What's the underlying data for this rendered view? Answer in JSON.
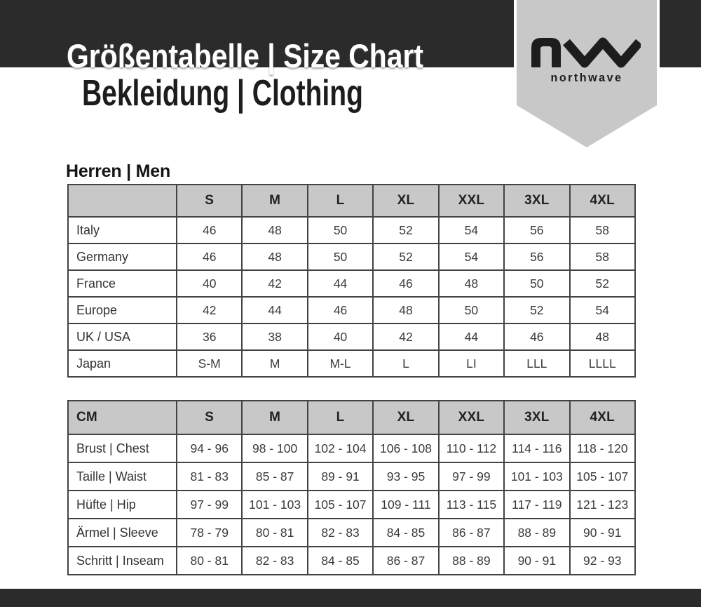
{
  "header": {
    "title": "Größentabelle | Size Chart",
    "subtitle": "Bekleidung | Clothing",
    "brand_name": "northwave"
  },
  "section_men": {
    "heading": "Herren | Men"
  },
  "size_table": {
    "columns": [
      "",
      "S",
      "M",
      "L",
      "XL",
      "XXL",
      "3XL",
      "4XL"
    ],
    "rows": [
      {
        "label": "Italy",
        "values": [
          "46",
          "48",
          "50",
          "52",
          "54",
          "56",
          "58"
        ]
      },
      {
        "label": "Germany",
        "values": [
          "46",
          "48",
          "50",
          "52",
          "54",
          "56",
          "58"
        ]
      },
      {
        "label": "France",
        "values": [
          "40",
          "42",
          "44",
          "46",
          "48",
          "50",
          "52"
        ]
      },
      {
        "label": "Europe",
        "values": [
          "42",
          "44",
          "46",
          "48",
          "50",
          "52",
          "54"
        ]
      },
      {
        "label": "UK / USA",
        "values": [
          "36",
          "38",
          "40",
          "42",
          "44",
          "46",
          "48"
        ]
      },
      {
        "label": "Japan",
        "values": [
          "S-M",
          "M",
          "M-L",
          "L",
          "LI",
          "LLL",
          "LLLL"
        ]
      }
    ]
  },
  "measurement_table": {
    "columns": [
      "CM",
      "S",
      "M",
      "L",
      "XL",
      "XXL",
      "3XL",
      "4XL"
    ],
    "rows": [
      {
        "label": "Brust | Chest",
        "values": [
          "94 - 96",
          "98 - 100",
          "102 - 104",
          "106 - 108",
          "110 - 112",
          "114 - 116",
          "118 - 120"
        ]
      },
      {
        "label": "Taille | Waist",
        "values": [
          "81 - 83",
          "85 - 87",
          "89 - 91",
          "93 - 95",
          "97 - 99",
          "101 - 103",
          "105 - 107"
        ]
      },
      {
        "label": "Hüfte | Hip",
        "values": [
          "97 - 99",
          "101 - 103",
          "105 - 107",
          "109 - 111",
          "113 - 115",
          "117 - 119",
          "121 - 123"
        ]
      },
      {
        "label": "Ärmel | Sleeve",
        "values": [
          "78 - 79",
          "80 - 81",
          "82 - 83",
          "84 - 85",
          "86 - 87",
          "88 - 89",
          "90 - 91"
        ]
      },
      {
        "label": "Schritt | Inseam",
        "values": [
          "80 - 81",
          "82 - 83",
          "84 - 85",
          "86 - 87",
          "88 - 89",
          "90 - 91",
          "92 - 93"
        ]
      }
    ]
  },
  "colors": {
    "band": "#2b2b2b",
    "pennant": "#c8c8c8",
    "pennant_outline": "#ffffff",
    "table_header_bg": "#c8c8c8",
    "table_border": "#434343",
    "logo": "#1d1d1d"
  }
}
